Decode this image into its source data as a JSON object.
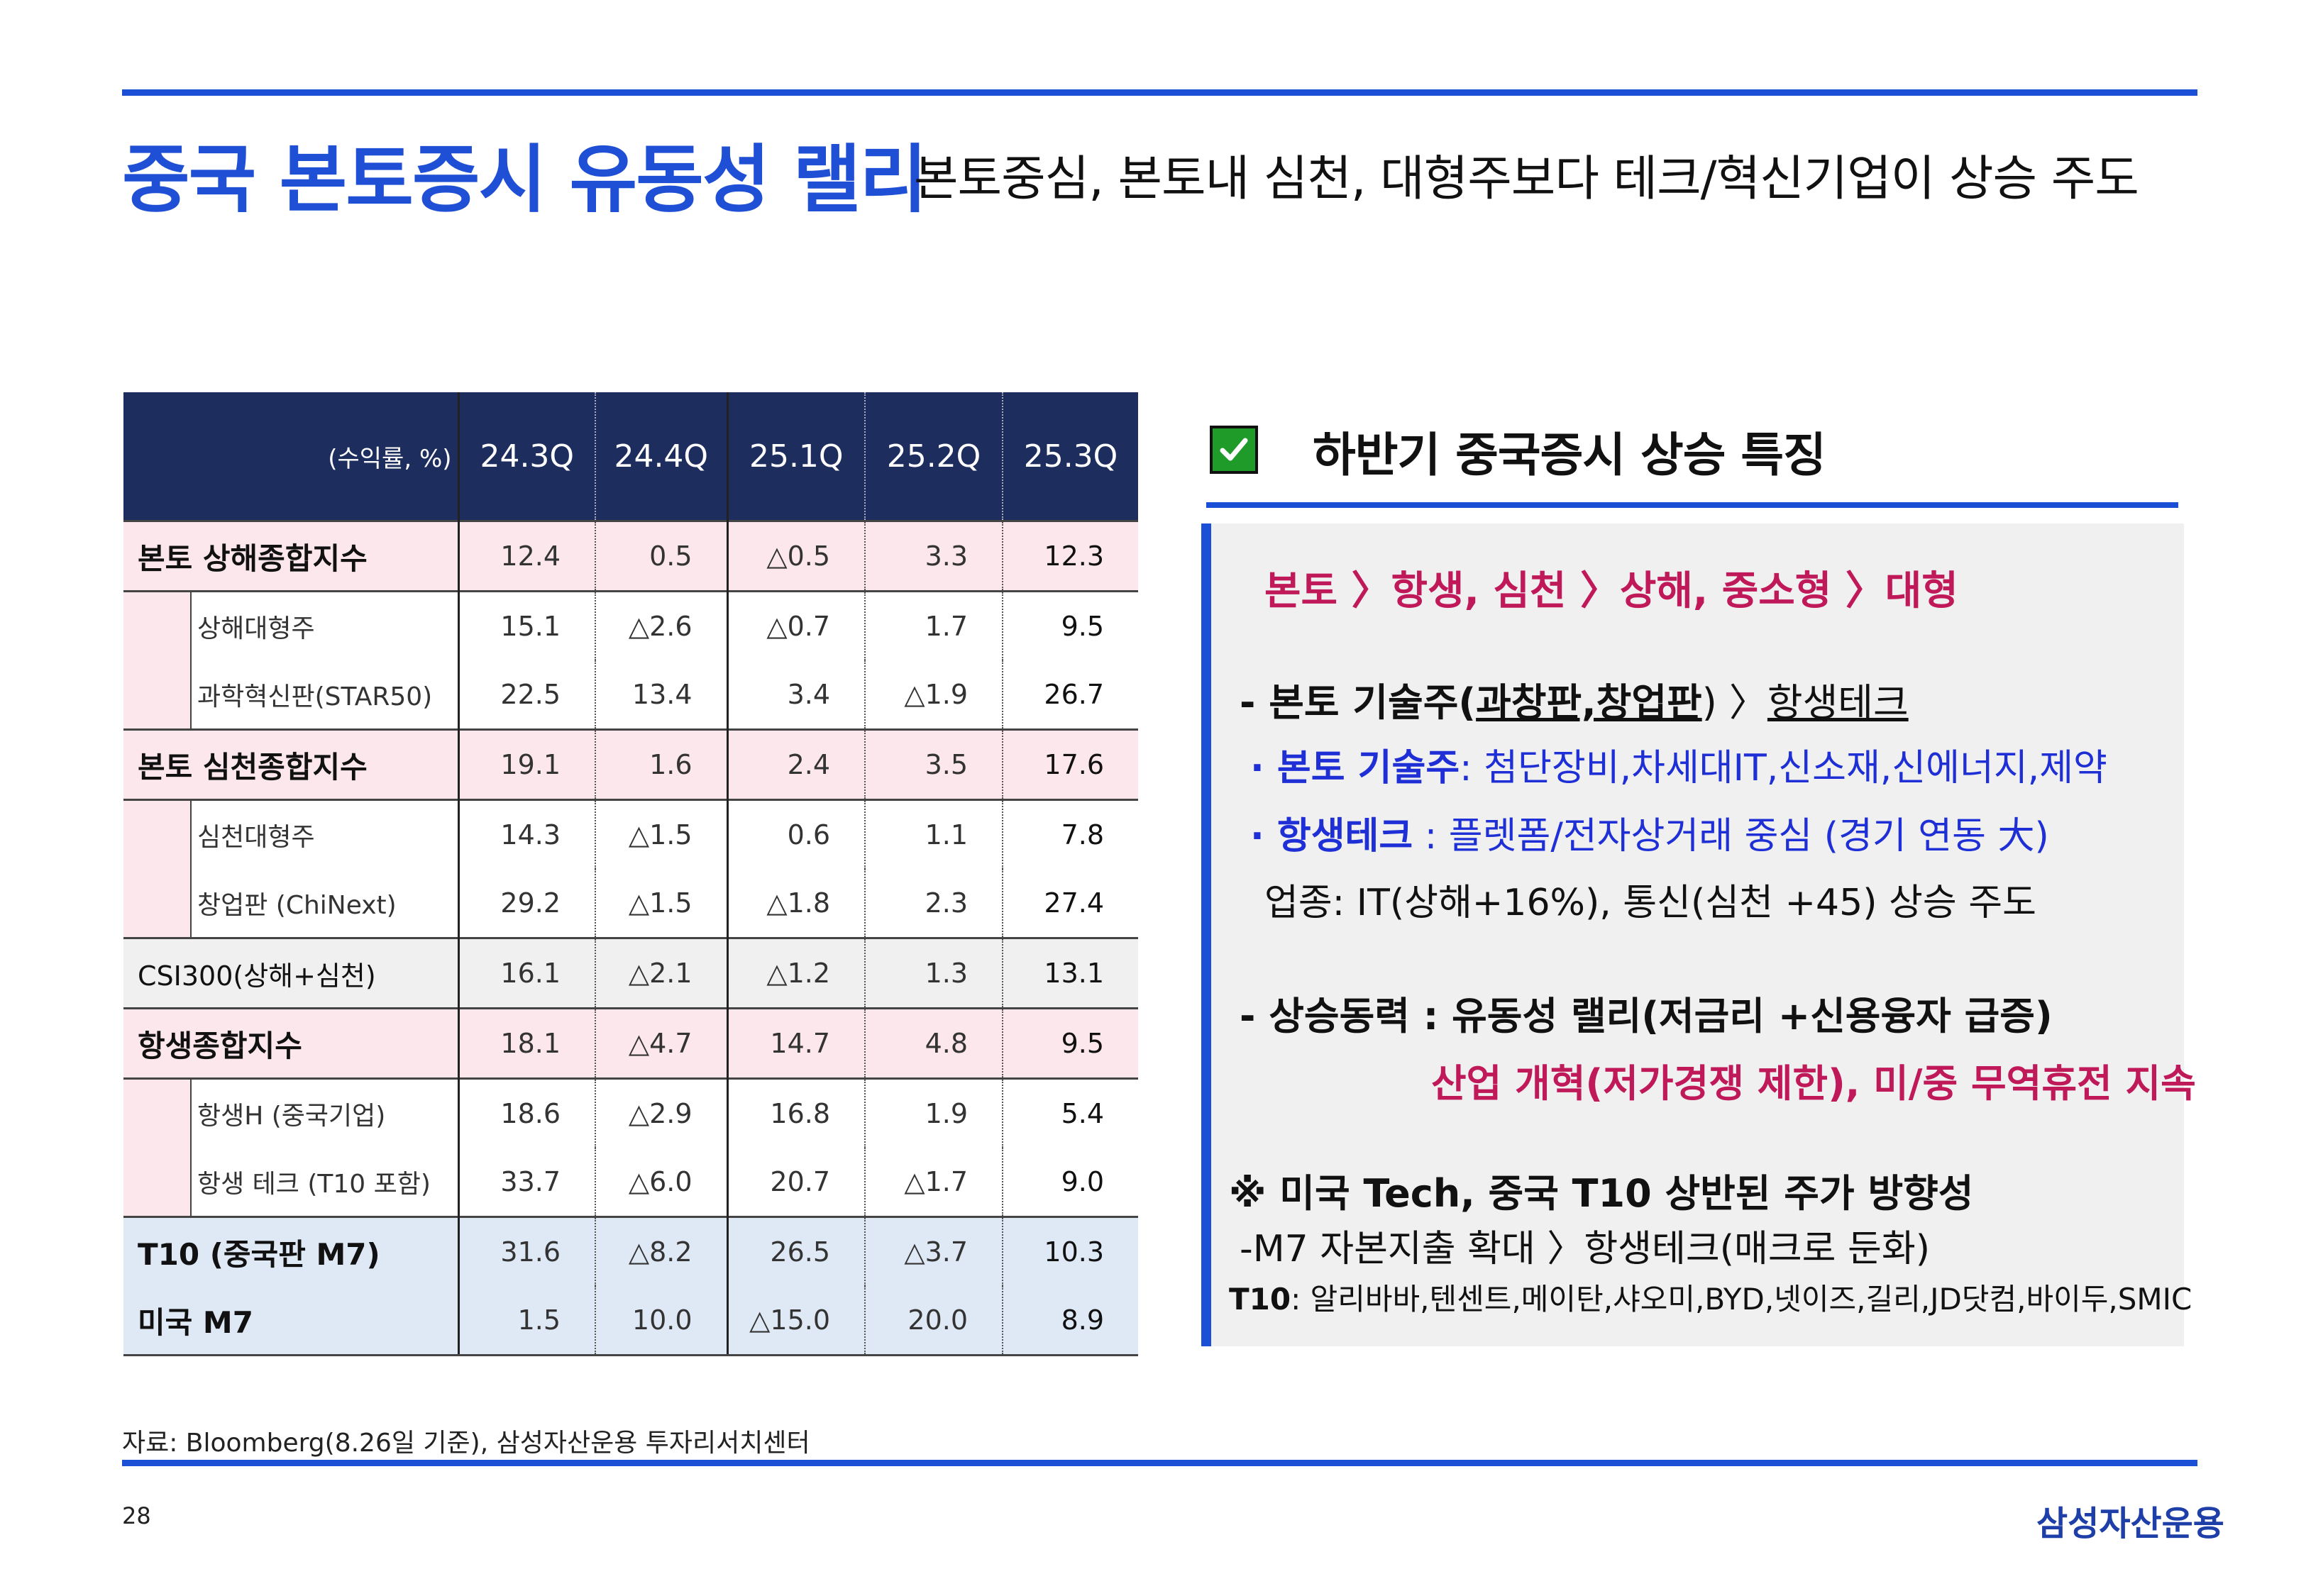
{
  "header": {
    "title": "중국 본토증시 유동성 랠리",
    "subtitle": "본토중심, 본토내 심천, 대형주보다 테크/혁신기업이 상승 주도"
  },
  "table": {
    "unit_label": "(수익률, %)",
    "columns": [
      "24.3Q",
      "24.4Q",
      "25.1Q",
      "25.2Q",
      "25.3Q"
    ],
    "rows": [
      {
        "label": "본토 상해종합지수",
        "values": [
          "12.4",
          "0.5",
          "△0.5",
          "3.3",
          "12.3"
        ]
      },
      {
        "label": "상해대형주",
        "values": [
          "15.1",
          "△2.6",
          "△0.7",
          "1.7",
          "9.5"
        ]
      },
      {
        "label": "과학혁신판(STAR50)",
        "values": [
          "22.5",
          "13.4",
          "3.4",
          "△1.9",
          "26.7"
        ]
      },
      {
        "label": "본토 심천종합지수",
        "values": [
          "19.1",
          "1.6",
          "2.4",
          "3.5",
          "17.6"
        ]
      },
      {
        "label": "심천대형주",
        "values": [
          "14.3",
          "△1.5",
          "0.6",
          "1.1",
          "7.8"
        ]
      },
      {
        "label": "창업판 (ChiNext)",
        "values": [
          "29.2",
          "△1.5",
          "△1.8",
          "2.3",
          "27.4"
        ]
      },
      {
        "label": "CSI300(상해+심천)",
        "values": [
          "16.1",
          "△2.1",
          "△1.2",
          "1.3",
          "13.1"
        ]
      },
      {
        "label": "항생종합지수",
        "values": [
          "18.1",
          "△4.7",
          "14.7",
          "4.8",
          "9.5"
        ]
      },
      {
        "label": "항생H (중국기업)",
        "values": [
          "18.6",
          "△2.9",
          "16.8",
          "1.9",
          "5.4"
        ]
      },
      {
        "label": "항생 테크 (T10 포함)",
        "values": [
          "33.7",
          "△6.0",
          "20.7",
          "△1.7",
          "9.0"
        ]
      },
      {
        "label": "T10 (중국판 M7)",
        "values": [
          "31.6",
          "△8.2",
          "26.5",
          "△3.7",
          "10.3"
        ]
      },
      {
        "label": "미국 M7",
        "values": [
          "1.5",
          "10.0",
          "△15.0",
          "20.0",
          "8.9"
        ]
      }
    ]
  },
  "panel": {
    "title": "하반기 중국증시 상승 특징",
    "line1": "본토 〉항생, 심천 〉상해, 중소형 〉대형",
    "line2_a": "- 본토 기술주(",
    "line2_b": "과창판,창업판",
    "line2_c": ") 〉",
    "line2_d": "항생테크",
    "line3_a": "· 본토 기술주",
    "line3_b": ": 첨단장비,차세대IT,신소재,신에너지,제약",
    "line4_a": "· 항생테크",
    "line4_b": " : 플렛폼/전자상거래 중심 (경기 연동 大)",
    "line5": "업종: IT(상해+16%), 통신(심천 +45) 상승 주도",
    "line6": "- 상승동력 : 유동성 랠리(저금리 +신용융자 급증)",
    "line7": "산업 개혁(저가경쟁 제한), 미/중 무역휴전 지속",
    "line8": "※ 미국 Tech, 중국 T10 상반된 주가 방향성",
    "line9": "-M7 자본지출 확대 〉항생테크(매크로 둔화)",
    "line10_a": "T10",
    "line10_b": ": 알리바바,텐센트,메이탄,샤오미,BYD,넷이즈,길리,JD닷컴,바이두,SMIC"
  },
  "footer": {
    "source": "자료: Bloomberg(8.26일 기준), 삼성자산운용 투자리서치센터",
    "page": "28",
    "logo": "삼성자산운용"
  },
  "colors": {
    "accent_blue": "#1a4fd6",
    "header_navy": "#1d2e5e",
    "magenta": "#c0195a",
    "check_green": "#1f9b2a"
  }
}
